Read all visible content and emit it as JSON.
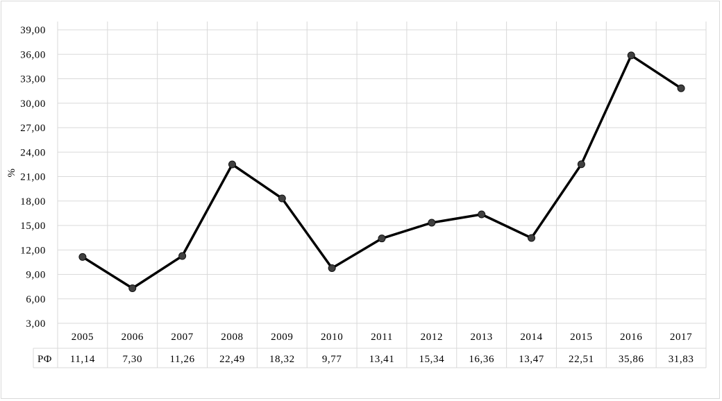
{
  "chart_data": {
    "type": "line",
    "ylabel": "%",
    "xlabel": "",
    "title": "",
    "categories": [
      "2005",
      "2006",
      "2007",
      "2008",
      "2009",
      "2010",
      "2011",
      "2012",
      "2013",
      "2014",
      "2015",
      "2016",
      "2017"
    ],
    "series": [
      {
        "name": "РФ",
        "values": [
          11.14,
          7.3,
          11.26,
          22.49,
          18.32,
          9.77,
          13.41,
          15.34,
          16.36,
          13.47,
          22.51,
          35.86,
          31.83
        ],
        "labels": [
          "11,14",
          "7,30",
          "11,26",
          "22,49",
          "18,32",
          "9,77",
          "13,41",
          "15,34",
          "16,36",
          "13,47",
          "22,51",
          "35,86",
          "31,83"
        ],
        "color": "#000000",
        "marker_color": "#404040"
      }
    ],
    "ylim": [
      3,
      39
    ],
    "yticks": [
      3,
      6,
      9,
      12,
      15,
      18,
      21,
      24,
      27,
      30,
      33,
      36,
      39
    ],
    "ytick_labels": [
      "3,00",
      "6,00",
      "9,00",
      "12,00",
      "15,00",
      "18,00",
      "21,00",
      "24,00",
      "27,00",
      "30,00",
      "33,00",
      "36,00",
      "39,00"
    ],
    "grid": true,
    "legend": "data-table-below",
    "grid_color": "#d9d9d9"
  }
}
